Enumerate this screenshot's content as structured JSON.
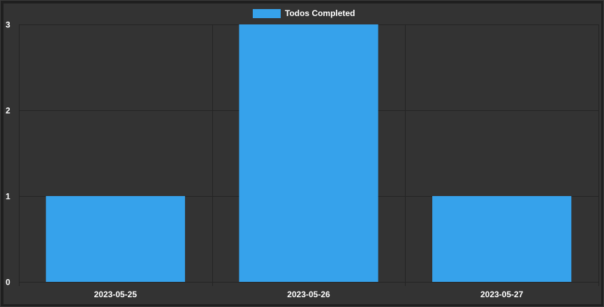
{
  "chart_data": {
    "type": "bar",
    "categories": [
      "2023-05-25",
      "2023-05-26",
      "2023-05-27"
    ],
    "series": [
      {
        "name": "Todos Completed",
        "values": [
          1,
          3,
          1
        ],
        "color": "#36a2eb"
      }
    ],
    "ylim": [
      0,
      3
    ],
    "yticks": [
      0,
      1,
      2,
      3
    ],
    "grid": true,
    "legend": "top-center"
  },
  "colors": {
    "background": "#333333",
    "grid": "#242424",
    "bar": "#36a2eb",
    "text": "#ffffff"
  }
}
